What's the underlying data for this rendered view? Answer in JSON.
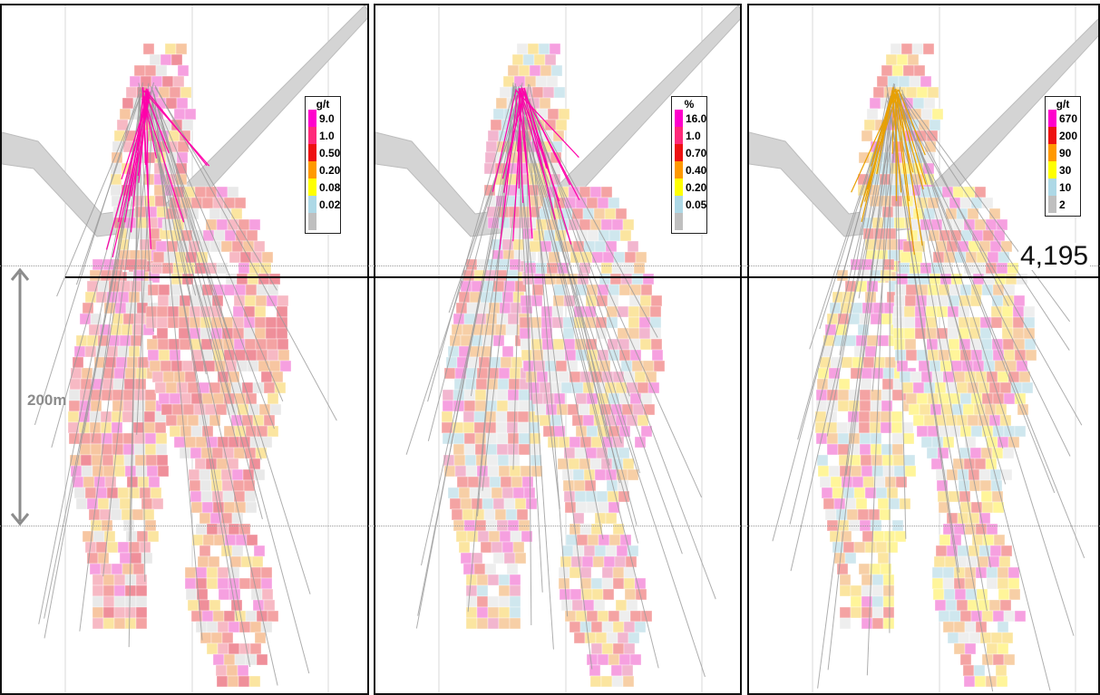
{
  "elevation_label": "4,195",
  "scale_label": "200m",
  "panels": [
    {
      "legend": {
        "unit": "g/t",
        "items": [
          {
            "label": "9.0",
            "color": "#ff00cc"
          },
          {
            "label": "1.0",
            "color": "#ff2a7a"
          },
          {
            "label": "0.50",
            "color": "#ee1111"
          },
          {
            "label": "0.20",
            "color": "#ff9900"
          },
          {
            "label": "0.08",
            "color": "#ffff00"
          },
          {
            "label": "0.02",
            "color": "#add8e6"
          },
          {
            "label": "",
            "color": "#bfbfbf"
          }
        ]
      }
    },
    {
      "legend": {
        "unit": "%",
        "items": [
          {
            "label": "16.0",
            "color": "#ff00cc"
          },
          {
            "label": "1.0",
            "color": "#ff2a7a"
          },
          {
            "label": "0.70",
            "color": "#ee1111"
          },
          {
            "label": "0.40",
            "color": "#ff9900"
          },
          {
            "label": "0.20",
            "color": "#ffff00"
          },
          {
            "label": "0.05",
            "color": "#add8e6"
          },
          {
            "label": "",
            "color": "#bfbfbf"
          }
        ]
      }
    },
    {
      "legend": {
        "unit": "g/t",
        "items": [
          {
            "label": "670",
            "color": "#ff00cc"
          },
          {
            "label": "200",
            "color": "#ee1111"
          },
          {
            "label": "90",
            "color": "#ff9900"
          },
          {
            "label": "30",
            "color": "#ffff00"
          },
          {
            "label": "10",
            "color": "#add8e6"
          },
          {
            "label": "2",
            "color": "#bfbfbf"
          }
        ]
      }
    }
  ]
}
